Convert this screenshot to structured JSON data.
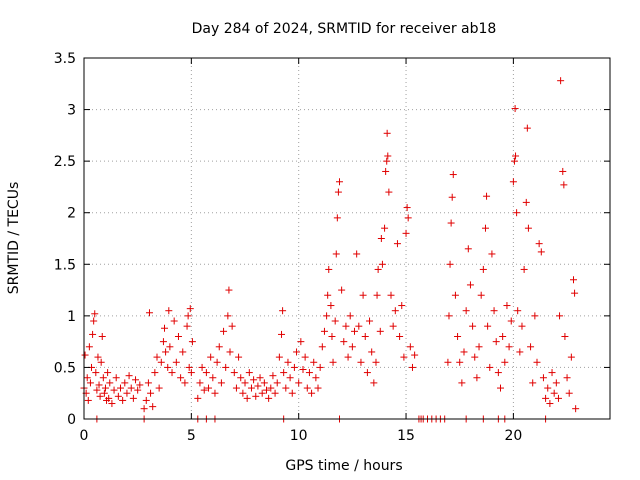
{
  "chart_data": {
    "type": "scatter",
    "title": "Day 284 of 2024, SRMTID for receiver ab18",
    "xlabel": "GPS time / hours",
    "ylabel": "SRMTID / TECUs",
    "xlim": [
      0,
      24.5
    ],
    "ylim": [
      0,
      3.5
    ],
    "xticks": [
      0,
      5,
      10,
      15,
      20
    ],
    "yticks": [
      0,
      0.5,
      1,
      1.5,
      2,
      2.5,
      3,
      3.5
    ],
    "xtick_labels": [
      "0",
      "5",
      "10",
      "15",
      "20"
    ],
    "ytick_labels": [
      "0",
      "0.5",
      "1",
      "1.5",
      "2",
      "2.5",
      "3",
      "3.5"
    ],
    "grid": true,
    "marker": "+",
    "color": "#e00000",
    "series": [
      {
        "name": "SRMTID",
        "points": [
          [
            0.0,
            0.3
          ],
          [
            0.05,
            0.62
          ],
          [
            0.1,
            0.25
          ],
          [
            0.15,
            0.4
          ],
          [
            0.2,
            0.18
          ],
          [
            0.25,
            0.7
          ],
          [
            0.3,
            0.35
          ],
          [
            0.35,
            0.5
          ],
          [
            0.4,
            0.82
          ],
          [
            0.45,
            0.95
          ],
          [
            0.5,
            1.02
          ],
          [
            0.55,
            0.45
          ],
          [
            0.6,
            0.28
          ],
          [
            0.65,
            0.6
          ],
          [
            0.7,
            0.33
          ],
          [
            0.75,
            0.22
          ],
          [
            0.8,
            0.55
          ],
          [
            0.85,
            0.8
          ],
          [
            0.9,
            0.4
          ],
          [
            0.95,
            0.25
          ],
          [
            1.0,
            0.3
          ],
          [
            1.05,
            0.18
          ],
          [
            1.1,
            0.45
          ],
          [
            1.15,
            0.2
          ],
          [
            1.2,
            0.35
          ],
          [
            1.3,
            0.15
          ],
          [
            1.4,
            0.28
          ],
          [
            1.5,
            0.4
          ],
          [
            1.6,
            0.22
          ],
          [
            1.7,
            0.3
          ],
          [
            1.8,
            0.18
          ],
          [
            1.9,
            0.35
          ],
          [
            2.0,
            0.25
          ],
          [
            2.1,
            0.42
          ],
          [
            2.2,
            0.3
          ],
          [
            2.3,
            0.2
          ],
          [
            2.4,
            0.38
          ],
          [
            2.5,
            0.28
          ],
          [
            2.6,
            0.33
          ],
          [
            2.8,
            0.1
          ],
          [
            2.9,
            0.18
          ],
          [
            3.0,
            0.35
          ],
          [
            3.05,
            1.03
          ],
          [
            3.1,
            0.25
          ],
          [
            3.2,
            0.12
          ],
          [
            3.3,
            0.45
          ],
          [
            3.4,
            0.6
          ],
          [
            3.5,
            0.3
          ],
          [
            3.6,
            0.55
          ],
          [
            3.7,
            0.75
          ],
          [
            3.75,
            0.88
          ],
          [
            3.8,
            0.65
          ],
          [
            3.9,
            0.5
          ],
          [
            3.95,
            1.05
          ],
          [
            4.0,
            0.7
          ],
          [
            4.1,
            0.45
          ],
          [
            4.2,
            0.95
          ],
          [
            4.3,
            0.55
          ],
          [
            4.4,
            0.8
          ],
          [
            4.5,
            0.4
          ],
          [
            4.6,
            0.65
          ],
          [
            4.7,
            0.35
          ],
          [
            4.8,
            0.9
          ],
          [
            4.85,
            1.0
          ],
          [
            4.9,
            0.5
          ],
          [
            4.95,
            1.07
          ],
          [
            5.0,
            0.45
          ],
          [
            5.05,
            0.75
          ],
          [
            5.3,
            0.2
          ],
          [
            5.4,
            0.35
          ],
          [
            5.5,
            0.5
          ],
          [
            5.6,
            0.28
          ],
          [
            5.7,
            0.45
          ],
          [
            5.8,
            0.3
          ],
          [
            5.9,
            0.6
          ],
          [
            6.0,
            0.4
          ],
          [
            6.1,
            0.25
          ],
          [
            6.2,
            0.55
          ],
          [
            6.3,
            0.7
          ],
          [
            6.4,
            0.35
          ],
          [
            6.5,
            0.85
          ],
          [
            6.6,
            0.5
          ],
          [
            6.7,
            1.0
          ],
          [
            6.75,
            1.25
          ],
          [
            6.8,
            0.65
          ],
          [
            6.9,
            0.9
          ],
          [
            7.0,
            0.45
          ],
          [
            7.1,
            0.3
          ],
          [
            7.2,
            0.6
          ],
          [
            7.3,
            0.4
          ],
          [
            7.4,
            0.25
          ],
          [
            7.5,
            0.35
          ],
          [
            7.6,
            0.2
          ],
          [
            7.7,
            0.45
          ],
          [
            7.8,
            0.3
          ],
          [
            7.9,
            0.38
          ],
          [
            8.0,
            0.22
          ],
          [
            8.1,
            0.32
          ],
          [
            8.2,
            0.4
          ],
          [
            8.3,
            0.25
          ],
          [
            8.4,
            0.35
          ],
          [
            8.5,
            0.28
          ],
          [
            8.6,
            0.2
          ],
          [
            8.7,
            0.3
          ],
          [
            8.8,
            0.42
          ],
          [
            8.9,
            0.25
          ],
          [
            9.0,
            0.35
          ],
          [
            9.1,
            0.6
          ],
          [
            9.2,
            0.82
          ],
          [
            9.25,
            1.05
          ],
          [
            9.3,
            0.45
          ],
          [
            9.4,
            0.3
          ],
          [
            9.5,
            0.55
          ],
          [
            9.6,
            0.4
          ],
          [
            9.7,
            0.25
          ],
          [
            9.8,
            0.5
          ],
          [
            9.9,
            0.65
          ],
          [
            10.0,
            0.35
          ],
          [
            10.1,
            0.75
          ],
          [
            10.2,
            0.48
          ],
          [
            10.3,
            0.6
          ],
          [
            10.4,
            0.3
          ],
          [
            10.5,
            0.45
          ],
          [
            10.6,
            0.25
          ],
          [
            10.7,
            0.55
          ],
          [
            10.8,
            0.4
          ],
          [
            10.9,
            0.3
          ],
          [
            11.0,
            0.5
          ],
          [
            11.1,
            0.7
          ],
          [
            11.2,
            0.85
          ],
          [
            11.3,
            1.0
          ],
          [
            11.35,
            1.2
          ],
          [
            11.4,
            1.45
          ],
          [
            11.5,
            1.1
          ],
          [
            11.55,
            0.8
          ],
          [
            11.6,
            0.55
          ],
          [
            11.7,
            0.95
          ],
          [
            11.75,
            1.6
          ],
          [
            11.8,
            1.95
          ],
          [
            11.85,
            2.2
          ],
          [
            11.9,
            2.3
          ],
          [
            12.0,
            1.25
          ],
          [
            12.1,
            0.75
          ],
          [
            12.2,
            0.9
          ],
          [
            12.3,
            0.6
          ],
          [
            12.4,
            1.0
          ],
          [
            12.5,
            0.7
          ],
          [
            12.6,
            0.85
          ],
          [
            12.7,
            1.6
          ],
          [
            12.8,
            0.9
          ],
          [
            12.9,
            0.55
          ],
          [
            13.0,
            1.2
          ],
          [
            13.1,
            0.8
          ],
          [
            13.2,
            0.45
          ],
          [
            13.3,
            0.95
          ],
          [
            13.4,
            0.65
          ],
          [
            13.5,
            0.35
          ],
          [
            13.6,
            0.55
          ],
          [
            13.65,
            1.2
          ],
          [
            13.7,
            1.45
          ],
          [
            13.8,
            0.85
          ],
          [
            13.85,
            1.75
          ],
          [
            13.9,
            1.5
          ],
          [
            14.0,
            1.85
          ],
          [
            14.05,
            2.4
          ],
          [
            14.1,
            2.5
          ],
          [
            14.12,
            2.77
          ],
          [
            14.15,
            2.55
          ],
          [
            14.2,
            2.2
          ],
          [
            14.3,
            1.2
          ],
          [
            14.4,
            0.9
          ],
          [
            14.5,
            1.05
          ],
          [
            14.6,
            1.7
          ],
          [
            14.7,
            0.8
          ],
          [
            14.8,
            1.1
          ],
          [
            14.9,
            0.6
          ],
          [
            15.0,
            1.8
          ],
          [
            15.05,
            2.05
          ],
          [
            15.1,
            1.95
          ],
          [
            15.2,
            0.7
          ],
          [
            15.3,
            0.5
          ],
          [
            15.4,
            0.62
          ],
          [
            15.6,
            0.0
          ],
          [
            15.8,
            0.0
          ],
          [
            16.0,
            0.0
          ],
          [
            16.2,
            0.0
          ],
          [
            16.4,
            0.0
          ],
          [
            16.6,
            0.0
          ],
          [
            16.8,
            0.0
          ],
          [
            16.95,
            0.55
          ],
          [
            17.0,
            1.0
          ],
          [
            17.05,
            1.5
          ],
          [
            17.1,
            1.9
          ],
          [
            17.15,
            2.15
          ],
          [
            17.2,
            2.37
          ],
          [
            17.3,
            1.2
          ],
          [
            17.4,
            0.8
          ],
          [
            17.5,
            0.55
          ],
          [
            17.6,
            0.35
          ],
          [
            17.7,
            0.65
          ],
          [
            17.8,
            1.05
          ],
          [
            17.9,
            1.65
          ],
          [
            18.0,
            1.3
          ],
          [
            18.1,
            0.9
          ],
          [
            18.2,
            0.6
          ],
          [
            18.3,
            0.4
          ],
          [
            18.4,
            0.7
          ],
          [
            18.5,
            1.2
          ],
          [
            18.6,
            1.45
          ],
          [
            18.7,
            1.85
          ],
          [
            18.75,
            2.16
          ],
          [
            18.8,
            0.9
          ],
          [
            18.9,
            0.5
          ],
          [
            19.0,
            1.6
          ],
          [
            19.1,
            1.05
          ],
          [
            19.2,
            0.75
          ],
          [
            19.3,
            0.45
          ],
          [
            19.4,
            0.3
          ],
          [
            19.5,
            0.8
          ],
          [
            19.6,
            0.55
          ],
          [
            19.7,
            1.1
          ],
          [
            19.8,
            0.7
          ],
          [
            19.9,
            0.95
          ],
          [
            20.0,
            2.3
          ],
          [
            20.05,
            2.5
          ],
          [
            20.08,
            3.01
          ],
          [
            20.1,
            2.55
          ],
          [
            20.15,
            2.0
          ],
          [
            20.2,
            1.05
          ],
          [
            20.3,
            0.65
          ],
          [
            20.4,
            0.9
          ],
          [
            20.5,
            1.45
          ],
          [
            20.6,
            2.1
          ],
          [
            20.65,
            2.82
          ],
          [
            20.7,
            1.85
          ],
          [
            20.8,
            0.7
          ],
          [
            20.9,
            0.35
          ],
          [
            21.0,
            1.0
          ],
          [
            21.1,
            0.55
          ],
          [
            21.2,
            1.7
          ],
          [
            21.3,
            1.62
          ],
          [
            21.4,
            0.4
          ],
          [
            21.5,
            0.2
          ],
          [
            21.6,
            0.3
          ],
          [
            21.7,
            0.15
          ],
          [
            21.8,
            0.45
          ],
          [
            21.9,
            0.25
          ],
          [
            22.0,
            0.35
          ],
          [
            22.1,
            0.2
          ],
          [
            22.15,
            1.0
          ],
          [
            22.2,
            3.28
          ],
          [
            22.3,
            2.4
          ],
          [
            22.35,
            2.27
          ],
          [
            22.4,
            0.8
          ],
          [
            22.5,
            0.4
          ],
          [
            22.6,
            0.25
          ],
          [
            22.7,
            0.6
          ],
          [
            22.8,
            1.35
          ],
          [
            22.85,
            1.22
          ],
          [
            22.9,
            0.1
          ],
          [
            0.6,
            0.0
          ],
          [
            2.8,
            0.0
          ],
          [
            5.3,
            0.0
          ],
          [
            5.7,
            0.0
          ],
          [
            6.1,
            0.0
          ],
          [
            9.3,
            0.0
          ],
          [
            11.9,
            0.0
          ],
          [
            15.7,
            0.0
          ],
          [
            17.8,
            0.0
          ],
          [
            18.6,
            0.0
          ],
          [
            19.3,
            0.0
          ],
          [
            19.6,
            0.0
          ],
          [
            21.5,
            0.0
          ]
        ]
      }
    ]
  }
}
